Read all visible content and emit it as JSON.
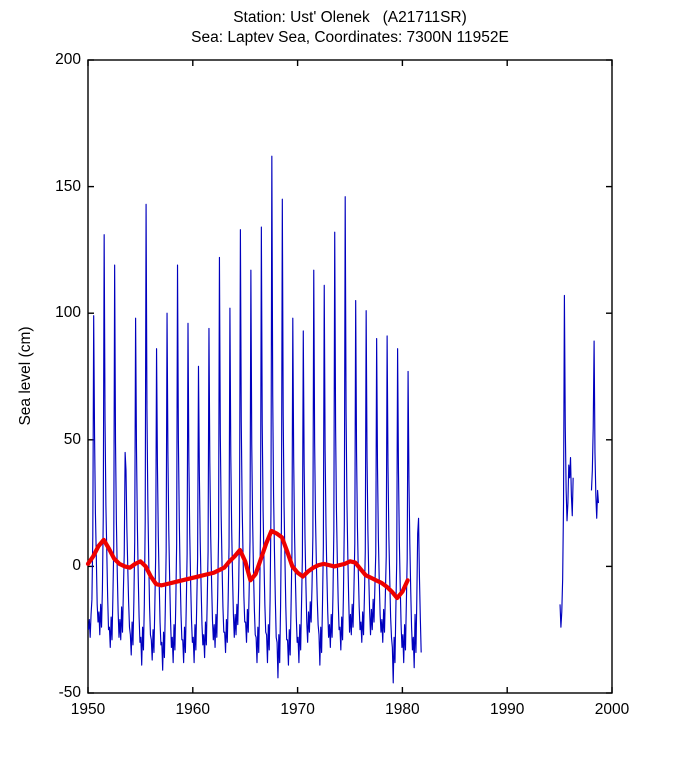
{
  "chart_data": {
    "type": "line",
    "title_lines": [
      "Station: Ust' Olenek   (A21711SR)",
      "Sea: Laptev Sea, Coordinates: 7300N 11952E"
    ],
    "station_name": "Ust' Olenek",
    "station_code": "A21711SR",
    "sea": "Laptev Sea",
    "coordinates": "7300N 11952E",
    "xlabel": "",
    "ylabel": "Sea level (cm)",
    "xlim": [
      1950,
      2000
    ],
    "ylim": [
      -50,
      200
    ],
    "x_ticks": [
      1950,
      1960,
      1970,
      1980,
      1990,
      2000
    ],
    "y_ticks": [
      200,
      150,
      100,
      50,
      0,
      -50
    ],
    "x_tick_labels": [
      "1950",
      "1960",
      "1970",
      "1980",
      "1990",
      "2000"
    ],
    "y_tick_labels": [
      "200",
      "150",
      "100",
      "50",
      "0",
      "-50"
    ],
    "grid": false,
    "legend_position": "none",
    "background": "#ffffff",
    "axis_color": "#000000",
    "series": [
      {
        "name": "monthly-sea-level",
        "color": "#0000BE",
        "line_width": 1.15,
        "cadence": "monthly",
        "segments": [
          {
            "start_year": 1950,
            "values": [
              -25,
              -21,
              -28,
              -19,
              -13,
              12,
              99,
              52,
              21,
              4,
              -15,
              -22,
              -18,
              -27,
              -15,
              -24,
              -9,
              20,
              131,
              58,
              24,
              6,
              -12,
              -25,
              -24,
              -32,
              -20,
              -29,
              -12,
              8,
              119,
              49,
              18,
              -2,
              -18,
              -28,
              -21,
              -29,
              -16,
              -26,
              -10,
              5,
              45,
              38,
              15,
              0,
              -14,
              -24,
              -27,
              -35,
              -22,
              -31,
              -14,
              10,
              98,
              47,
              17,
              -4,
              -20,
              -30,
              -28,
              -39,
              -24,
              -33,
              -15,
              18,
              143,
              62,
              26,
              3,
              -16,
              -27,
              -29,
              -37,
              -25,
              -34,
              -16,
              4,
              86,
              40,
              12,
              -6,
              -22,
              -31,
              -30,
              -41,
              -26,
              -36,
              -17,
              6,
              100,
              45,
              14,
              -5,
              -21,
              -32,
              -28,
              -38,
              -23,
              -33,
              -15,
              9,
              119,
              50,
              19,
              -3,
              -19,
              -29,
              -29,
              -38,
              -24,
              -34,
              -16,
              5,
              96,
              42,
              13,
              -6,
              -21,
              -30,
              -28,
              -38,
              -23,
              -33,
              -15,
              3,
              79,
              37,
              10,
              -8,
              -23,
              -31,
              -27,
              -36,
              -22,
              -31,
              -14,
              6,
              94,
              41,
              12,
              -6,
              -21,
              -29,
              -23,
              -32,
              -19,
              -28,
              -11,
              12,
              122,
              52,
              20,
              0,
              -16,
              -26,
              -26,
              -34,
              -21,
              -30,
              -13,
              8,
              102,
              44,
              15,
              -4,
              -19,
              -28,
              -19,
              -27,
              -15,
              -23,
              -8,
              16,
              133,
              57,
              24,
              5,
              -12,
              -22,
              -22,
              -30,
              -17,
              -26,
              -10,
              10,
              117,
              48,
              18,
              -2,
              -17,
              -27,
              -28,
              -38,
              -24,
              -34,
              -14,
              14,
              134,
              56,
              22,
              2,
              -15,
              -26,
              -27,
              -38,
              -23,
              -33,
              -13,
              22,
              162,
              68,
              28,
              6,
              -13,
              -28,
              -30,
              -44,
              -27,
              -38,
              -16,
              18,
              145,
              60,
              24,
              3,
              -16,
              -29,
              -29,
              -39,
              -25,
              -35,
              -16,
              5,
              98,
              43,
              13,
              -5,
              -20,
              -30,
              -28,
              -38,
              -23,
              -33,
              -15,
              4,
              93,
              40,
              11,
              -7,
              -22,
              -30,
              -18,
              -26,
              -14,
              -22,
              -8,
              12,
              117,
              49,
              19,
              1,
              -13,
              -23,
              -27,
              -39,
              -24,
              -34,
              -15,
              8,
              111,
              46,
              16,
              -3,
              -18,
              -28,
              -23,
              -32,
              -19,
              -28,
              -11,
              14,
              132,
              55,
              22,
              2,
              -14,
              -25,
              -24,
              -33,
              -20,
              -29,
              -11,
              17,
              146,
              61,
              25,
              4,
              -13,
              -26,
              -19,
              -27,
              -15,
              -24,
              -9,
              9,
              105,
              45,
              16,
              -2,
              -16,
              -25,
              -22,
              -30,
              -18,
              -27,
              -12,
              6,
              101,
              43,
              14,
              -4,
              -18,
              -27,
              -17,
              -25,
              -13,
              -22,
              -8,
              5,
              90,
              39,
              11,
              -6,
              -19,
              -26,
              -21,
              -30,
              -17,
              -26,
              -11,
              4,
              91,
              40,
              12,
              -5,
              -20,
              -28,
              -32,
              -46,
              -28,
              -38,
              -17,
              2,
              86,
              38,
              10,
              -8,
              -23,
              -32,
              -27,
              -38,
              -23,
              -33,
              -15,
              3,
              77,
              34,
              9,
              -9,
              -24,
              -33,
              -28,
              -40,
              -19,
              -34,
              -13,
              13,
              19,
              -4,
              -20,
              -34
            ]
          },
          {
            "start_year": 1995,
            "values": [
              -15,
              -24,
              -18,
              -5,
              25,
              107,
              55,
              30,
              18,
              25,
              40,
              35,
              43,
              28,
              20,
              35
            ]
          },
          {
            "start_year": 1998,
            "values": [
              30,
              38,
              55,
              89,
              45,
              28,
              19,
              30,
              25
            ]
          }
        ]
      },
      {
        "name": "smoothed-running-mean",
        "color": "#EE0000",
        "line_width": 4.2,
        "points": [
          [
            1950.0,
            1
          ],
          [
            1950.5,
            4
          ],
          [
            1951.0,
            8
          ],
          [
            1951.5,
            10.5
          ],
          [
            1952.0,
            7
          ],
          [
            1952.5,
            3
          ],
          [
            1953.0,
            1
          ],
          [
            1953.5,
            0
          ],
          [
            1954.0,
            -0.5
          ],
          [
            1954.5,
            1
          ],
          [
            1955.0,
            2
          ],
          [
            1955.5,
            0
          ],
          [
            1956.0,
            -4
          ],
          [
            1956.5,
            -7
          ],
          [
            1957.0,
            -7.5
          ],
          [
            1957.5,
            -7
          ],
          [
            1958.0,
            -6.5
          ],
          [
            1958.5,
            -6
          ],
          [
            1959.0,
            -5.5
          ],
          [
            1959.5,
            -5
          ],
          [
            1960.0,
            -4.5
          ],
          [
            1960.5,
            -4
          ],
          [
            1961.0,
            -3.5
          ],
          [
            1961.5,
            -3
          ],
          [
            1962.0,
            -2.5
          ],
          [
            1962.5,
            -1.5
          ],
          [
            1963.0,
            -0.5
          ],
          [
            1963.5,
            2
          ],
          [
            1964.0,
            4
          ],
          [
            1964.5,
            6.5
          ],
          [
            1965.0,
            2
          ],
          [
            1965.5,
            -5.5
          ],
          [
            1966.0,
            -3
          ],
          [
            1966.5,
            3
          ],
          [
            1967.0,
            9
          ],
          [
            1967.5,
            14
          ],
          [
            1968.0,
            13
          ],
          [
            1968.5,
            11.5
          ],
          [
            1969.0,
            6
          ],
          [
            1969.5,
            0
          ],
          [
            1970.0,
            -2.5
          ],
          [
            1970.5,
            -4
          ],
          [
            1971.0,
            -2
          ],
          [
            1971.5,
            -0.5
          ],
          [
            1972.0,
            0.5
          ],
          [
            1972.5,
            1
          ],
          [
            1973.0,
            0.5
          ],
          [
            1973.5,
            0
          ],
          [
            1974.0,
            0.5
          ],
          [
            1974.5,
            1
          ],
          [
            1975.0,
            2
          ],
          [
            1975.5,
            1.5
          ],
          [
            1976.0,
            -1
          ],
          [
            1976.5,
            -3.5
          ],
          [
            1977.0,
            -4.5
          ],
          [
            1977.5,
            -5.5
          ],
          [
            1978.0,
            -6.5
          ],
          [
            1978.5,
            -8
          ],
          [
            1979.0,
            -10
          ],
          [
            1979.5,
            -12.5
          ],
          [
            1980.0,
            -10
          ],
          [
            1980.5,
            -5.5
          ]
        ]
      }
    ]
  }
}
